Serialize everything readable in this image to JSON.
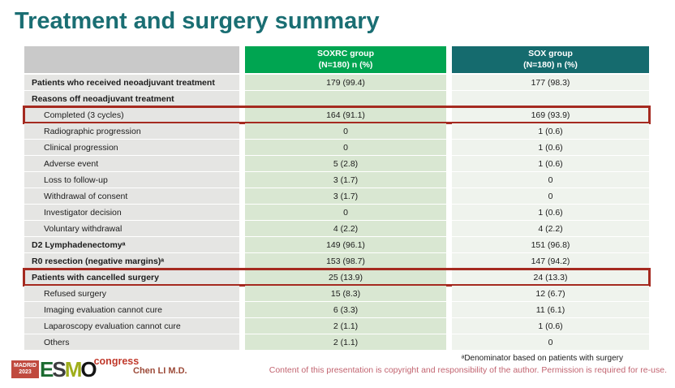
{
  "slide": {
    "title": "Treatment and surgery summary"
  },
  "table": {
    "header": {
      "col1": "",
      "col2": "SOXRC group\n(N=180)  n (%)",
      "col3": "SOX group\n(N=180)  n (%)"
    },
    "rows": [
      {
        "label": "Patients who received neoadjuvant treatment",
        "soxrc": "179 (99.4)",
        "sox": "177 (98.3)",
        "style": "bold",
        "highlight": false
      },
      {
        "label": "Reasons off neoadjuvant treatment",
        "soxrc": "",
        "sox": "",
        "style": "bold",
        "highlight": false
      },
      {
        "label": "Completed (3 cycles)",
        "soxrc": "164 (91.1)",
        "sox": "169 (93.9)",
        "style": "indent",
        "highlight": true
      },
      {
        "label": "Radiographic progression",
        "soxrc": "0",
        "sox": "1 (0.6)",
        "style": "indent",
        "highlight": false
      },
      {
        "label": "Clinical progression",
        "soxrc": "0",
        "sox": "1 (0.6)",
        "style": "indent",
        "highlight": false
      },
      {
        "label": "Adverse event",
        "soxrc": "5 (2.8)",
        "sox": "1 (0.6)",
        "style": "indent",
        "highlight": false
      },
      {
        "label": "Loss to follow-up",
        "soxrc": "3 (1.7)",
        "sox": "0",
        "style": "indent",
        "highlight": false
      },
      {
        "label": "Withdrawal of consent",
        "soxrc": "3 (1.7)",
        "sox": "0",
        "style": "indent",
        "highlight": false
      },
      {
        "label": "Investigator decision",
        "soxrc": "0",
        "sox": "1 (0.6)",
        "style": "indent",
        "highlight": false
      },
      {
        "label": "Voluntary withdrawal",
        "soxrc": "4 (2.2)",
        "sox": "4 (2.2)",
        "style": "indent",
        "highlight": false
      },
      {
        "label": "D2 Lymphadenectomyᵃ",
        "soxrc": "149 (96.1)",
        "sox": "151 (96.8)",
        "style": "bold",
        "highlight": false
      },
      {
        "label": "R0 resection (negative margins)ᵃ",
        "soxrc": "153 (98.7)",
        "sox": "147 (94.2)",
        "style": "bold",
        "highlight": false
      },
      {
        "label": "Patients with cancelled surgery",
        "soxrc": "25 (13.9)",
        "sox": "24 (13.3)",
        "style": "bold",
        "highlight": true
      },
      {
        "label": "Refused surgery",
        "soxrc": "15 (8.3)",
        "sox": "12 (6.7)",
        "style": "indent",
        "highlight": false
      },
      {
        "label": "Imaging evaluation cannot cure",
        "soxrc": "6 (3.3)",
        "sox": "11 (6.1)",
        "style": "indent",
        "highlight": false
      },
      {
        "label": "Laparoscopy evaluation cannot cure",
        "soxrc": "2 (1.1)",
        "sox": "1 (0.6)",
        "style": "indent",
        "highlight": false
      },
      {
        "label": "Others",
        "soxrc": "2 (1.1)",
        "sox": "0",
        "style": "indent",
        "highlight": false
      }
    ]
  },
  "footer": {
    "footnote": "ᵃDenominator based on patients with surgery",
    "copyright": "Content of this presentation is copyright and responsibility of the author. Permission is required for re-use.",
    "presenter": "Chen LI M.D.",
    "logo": {
      "venue": "MADRID\n2023",
      "letter_e": "E",
      "letter_s": "S",
      "letter_m": "M",
      "letter_o": "O",
      "suffix": "congress"
    }
  },
  "colors": {
    "title": "#1a6e73",
    "header_green": "#00a551",
    "header_teal": "#156b6e",
    "header_gray": "#c9c9c9",
    "label_cell_bg": "#e5e5e3",
    "soxrc_cell_bg": "#d9e7d2",
    "sox_cell_bg": "#eff3ed",
    "highlight_border": "#a52a20",
    "copyright_text": "#c26470",
    "presenter_text": "#9c4a38"
  }
}
